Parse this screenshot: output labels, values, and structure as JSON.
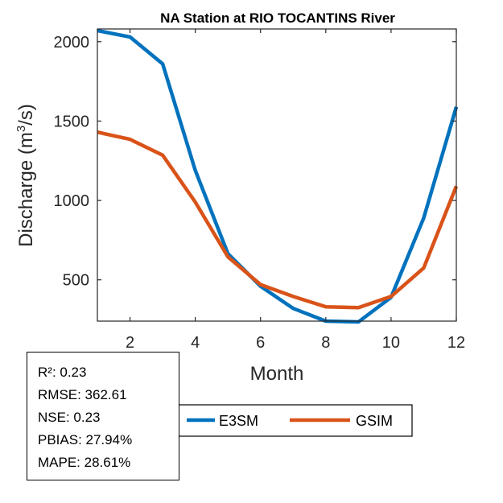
{
  "chart_data": {
    "type": "line",
    "title": "NA  Station at  RIO TOCANTINS  River",
    "xlabel": "Month",
    "ylabel_main": "Discharge (m",
    "ylabel_sup": "3",
    "ylabel_tail": "/s)",
    "xlim": [
      1,
      12
    ],
    "ylim": [
      240,
      2080
    ],
    "xticks": [
      "2",
      "4",
      "6",
      "8",
      "10",
      "12"
    ],
    "yticks": [
      "500",
      "1000",
      "1500",
      "2000"
    ],
    "x": [
      1,
      2,
      3,
      4,
      5,
      6,
      7,
      8,
      9,
      10,
      11,
      12
    ],
    "series": [
      {
        "name": "E3SM",
        "color": "#0072BD",
        "values": [
          2070,
          2030,
          1860,
          1190,
          665,
          460,
          320,
          240,
          235,
          390,
          890,
          1590
        ]
      },
      {
        "name": "GSIM",
        "color": "#D95319",
        "values": [
          1430,
          1385,
          1285,
          990,
          645,
          470,
          395,
          330,
          325,
          395,
          575,
          1090
        ]
      }
    ]
  },
  "stats": {
    "r2": "R²: 0.23",
    "rmse": "RMSE: 362.61",
    "nse": "NSE: 0.23",
    "pbias": "PBIAS: 27.94%",
    "mape": "MAPE: 28.61%"
  }
}
